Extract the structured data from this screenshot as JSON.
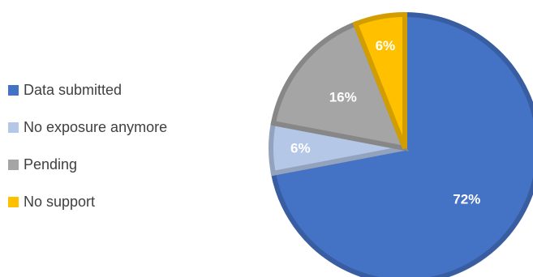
{
  "chart_data": {
    "type": "pie",
    "categories": [
      "Data submitted",
      "No exposure anymore",
      "Pending",
      "No support"
    ],
    "values": [
      72,
      6,
      16,
      6
    ],
    "data_labels": [
      "72%",
      "6%",
      "16%",
      "6%"
    ],
    "colors": [
      "#4472C4",
      "#B4C7E7",
      "#A5A5A5",
      "#FFC000"
    ],
    "legend_position": "left",
    "title": ""
  }
}
